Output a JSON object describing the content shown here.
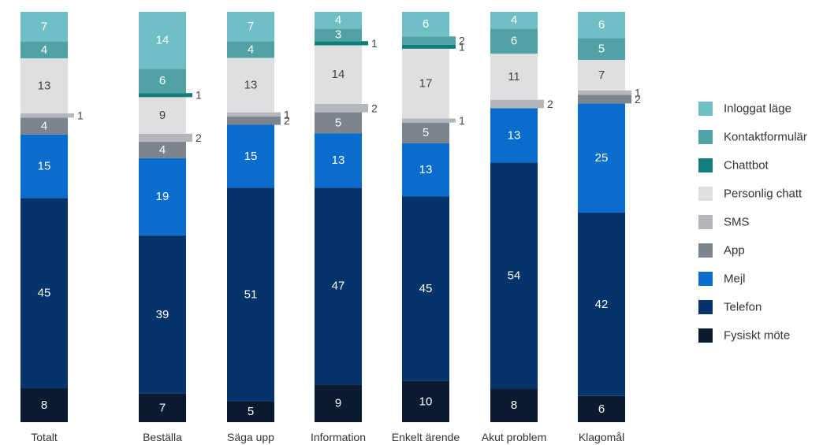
{
  "chart_data": {
    "type": "bar",
    "stacked": true,
    "normalized": "percent",
    "categories": [
      "Totalt",
      "Beställa",
      "Säga upp",
      "Information",
      "Enkelt ärende",
      "Akut problem",
      "Klagomål"
    ],
    "series": [
      {
        "name": "Fysiskt möte",
        "color": "#0a1a30",
        "values": [
          8,
          7,
          5,
          9,
          10,
          8,
          6
        ]
      },
      {
        "name": "Telefon",
        "color": "#04346b",
        "values": [
          45,
          39,
          51,
          47,
          45,
          54,
          42
        ]
      },
      {
        "name": "Mejl",
        "color": "#0a6ccc",
        "values": [
          15,
          19,
          15,
          13,
          13,
          13,
          25
        ]
      },
      {
        "name": "App",
        "color": "#7c848c",
        "values": [
          4,
          4,
          2,
          5,
          5,
          0,
          2
        ]
      },
      {
        "name": "SMS",
        "color": "#b4b6bb",
        "values": [
          1,
          2,
          1,
          2,
          1,
          2,
          1
        ]
      },
      {
        "name": "Personlig chatt",
        "color": "#dedfe1",
        "values": [
          13,
          9,
          13,
          14,
          17,
          11,
          7
        ]
      },
      {
        "name": "Chattbot",
        "color": "#117e7c",
        "values": [
          0,
          1,
          0,
          1,
          1,
          0,
          0
        ]
      },
      {
        "name": "Kontaktformulär",
        "color": "#50a2a4",
        "values": [
          4,
          6,
          4,
          3,
          2,
          6,
          5
        ]
      },
      {
        "name": "Inloggat läge",
        "color": "#6fc0c6",
        "values": [
          7,
          14,
          7,
          4,
          6,
          4,
          6
        ]
      }
    ],
    "legend_order": [
      "Inloggat läge",
      "Kontaktformulär",
      "Chattbot",
      "Personlig chatt",
      "SMS",
      "App",
      "Mejl",
      "Telefon",
      "Fysiskt möte"
    ],
    "legend_position": "right",
    "title": "",
    "xlabel": "",
    "ylabel": "",
    "grid": false
  }
}
